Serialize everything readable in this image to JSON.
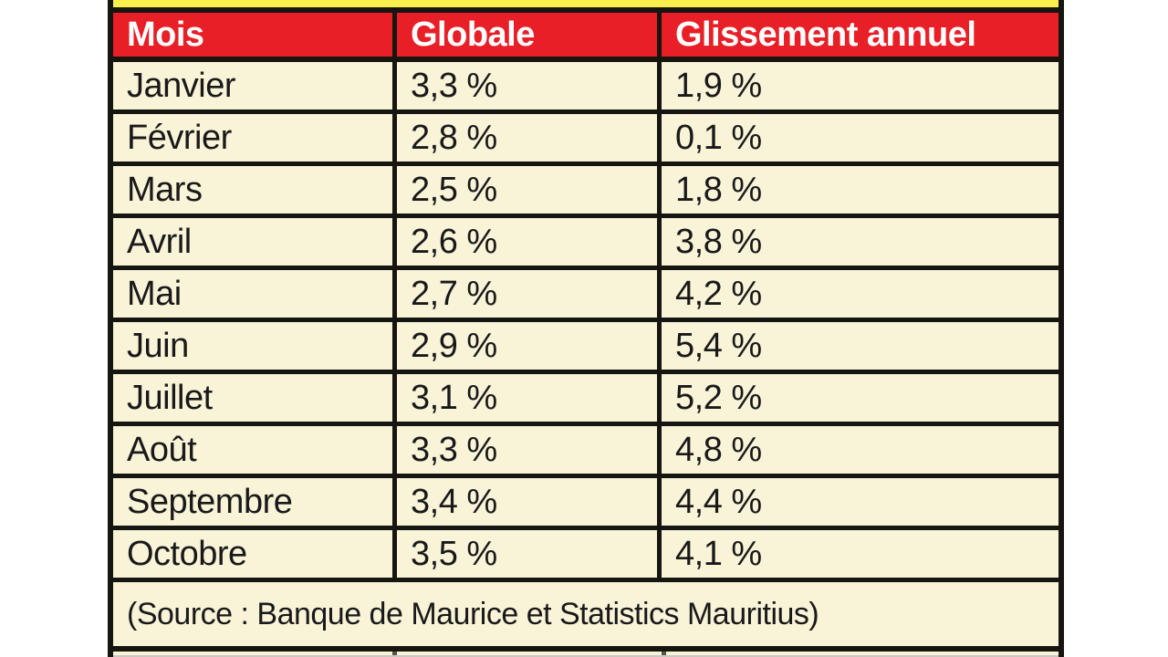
{
  "page": {
    "background_color": "#ffffff",
    "description_colors": {
      "top_bar_yellow": "#fbef4d",
      "header_red": "#e81f27",
      "cell_cream": "#f9f3d8",
      "border_black": "#16150f",
      "header_text": "#ffffff",
      "body_text": "#191919"
    }
  },
  "table": {
    "header": {
      "mois": "Mois",
      "globale": "Globale",
      "glissement": "Glissement annuel"
    },
    "rows": [
      {
        "mois": "Janvier",
        "globale": "3,3 %",
        "glissement": "1,9 %"
      },
      {
        "mois": "Février",
        "globale": "2,8 %",
        "glissement": "0,1 %"
      },
      {
        "mois": "Mars",
        "globale": "2,5 %",
        "glissement": "1,8 %"
      },
      {
        "mois": "Avril",
        "globale": "2,6 %",
        "glissement": "3,8 %"
      },
      {
        "mois": "Mai",
        "globale": "2,7 %",
        "glissement": "4,2 %"
      },
      {
        "mois": "Juin",
        "globale": "2,9 %",
        "glissement": "5,4 %"
      },
      {
        "mois": "Juillet",
        "globale": "3,1 %",
        "glissement": "5,2 %"
      },
      {
        "mois": "Août",
        "globale": "3,3 %",
        "glissement": "4,8 %"
      },
      {
        "mois": "Septembre",
        "globale": "3,4 %",
        "glissement": "4,4 %"
      },
      {
        "mois": "Octobre",
        "globale": "3,5 %",
        "glissement": "4,1 %"
      }
    ],
    "footer": {
      "source": "(Source : Banque de Maurice et Statistics Mauritius)"
    }
  },
  "chart_data": {
    "type": "table",
    "title": "",
    "columns": [
      "Mois",
      "Globale",
      "Glissement annuel"
    ],
    "categories": [
      "Janvier",
      "Février",
      "Mars",
      "Avril",
      "Mai",
      "Juin",
      "Juillet",
      "Août",
      "Septembre",
      "Octobre"
    ],
    "series": [
      {
        "name": "Globale",
        "values": [
          3.3,
          2.8,
          2.5,
          2.6,
          2.7,
          2.9,
          3.1,
          3.3,
          3.4,
          3.5
        ],
        "unit": "%"
      },
      {
        "name": "Glissement annuel",
        "values": [
          1.9,
          0.1,
          1.8,
          3.8,
          4.2,
          5.4,
          5.2,
          4.8,
          4.4,
          4.1
        ],
        "unit": "%"
      }
    ],
    "annotations": [
      "(Source : Banque de Maurice et Statistics Mauritius)"
    ]
  }
}
